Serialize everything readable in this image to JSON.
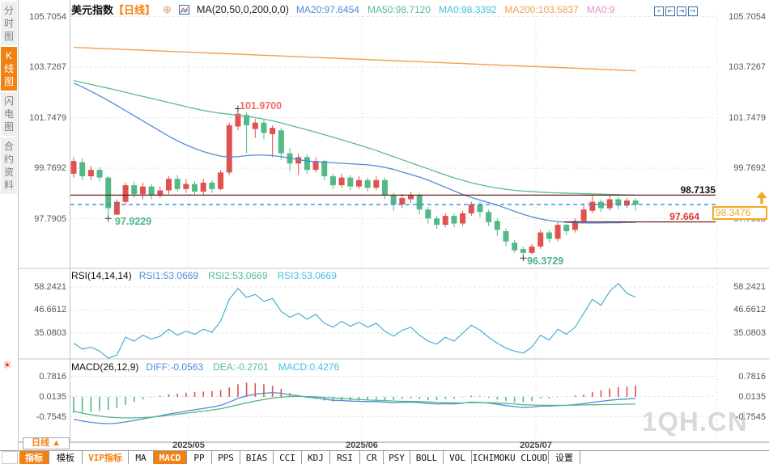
{
  "colors": {
    "accent_orange": "#f28114",
    "box_orange": "#f5a623",
    "candle_up": "#e0524d",
    "candle_down": "#53b987",
    "ma20_line": "#4f8bd8",
    "ma50_line": "#55bd91",
    "ma200_line": "#f0a050",
    "level_line_dark_red": "#6b1d1d",
    "dashed_price_blue": "#2f8be8",
    "rsi_line": "#49aed6",
    "diff_line": "#4f8bd8",
    "dea_line": "#53b987",
    "peak_label_red": "#ef6c6c",
    "low_label_green": "#4db389",
    "support_label_red": "#e03131"
  },
  "sidebar": {
    "tabs": [
      {
        "label": "分时图",
        "active": false
      },
      {
        "label": "K线图",
        "active": true
      },
      {
        "label": "闪电图",
        "active": false
      },
      {
        "label": "合约资料",
        "active": false
      }
    ]
  },
  "header": {
    "symbol": "美元指数",
    "period": "【日线】",
    "icons": {
      "add_indicator": "circle-plus",
      "chart_type": "line-chart-box"
    },
    "ma_formula": "MA(20,50,0,200,0,0)",
    "ma_values": [
      {
        "text": "MA20:97.6454",
        "color": "#4f8bd8"
      },
      {
        "text": "MA50:98.7120",
        "color": "#55bd91"
      },
      {
        "text": "MA0:98.3392",
        "color": "#45c0e0"
      },
      {
        "text": "MA200:103.5837",
        "color": "#f0a050"
      },
      {
        "text": "MA0:9",
        "color": "#ea8fc8"
      }
    ],
    "window_icons": [
      "pan",
      "shift-left",
      "shift-right",
      "restore"
    ]
  },
  "main_axis": {
    "labels": [
      "105.7054",
      "103.7267",
      "101.7479",
      "99.7692",
      "97.7905"
    ],
    "prices": [
      105.7054,
      103.7267,
      101.7479,
      99.7692,
      97.7905
    ]
  },
  "annotations": {
    "peak": "101.9700",
    "low_may": "97.9229",
    "low_july": "96.3729",
    "resistance": "98.7135",
    "support": "97.664",
    "last_price": "98.3476"
  },
  "rsi": {
    "title": "RSI(14,14,14)",
    "readouts": [
      {
        "text": "RSI1:53.0669",
        "color": "#4f8bd8"
      },
      {
        "text": "RSI2:53.0669",
        "color": "#55bd91"
      },
      {
        "text": "RSI3:53.0669",
        "color": "#45c0e0"
      }
    ],
    "axis_labels": [
      "58.2421",
      "46.6612",
      "35.0803"
    ],
    "axis_values": [
      58.2421,
      46.6612,
      35.0803
    ]
  },
  "macd": {
    "title": "MACD(26,12,9)",
    "readouts": [
      {
        "text": "DIFF:-0.0563",
        "color": "#4f8bd8"
      },
      {
        "text": "DEA:-0.2701",
        "color": "#55bd91"
      },
      {
        "text": "MACD:0.4276",
        "color": "#45c0e0"
      }
    ],
    "axis_labels": [
      "0.7816",
      "0.0135",
      "-0.7545"
    ],
    "axis_values": [
      0.7816,
      0.0135,
      -0.7545
    ]
  },
  "xaxis": {
    "period_selector": "日线",
    "arrow": "▲",
    "dates": [
      "2025/05",
      "2025/06",
      "2025/07"
    ]
  },
  "toolbar": {
    "items": [
      {
        "label": "指标",
        "state": "active"
      },
      {
        "label": "模板",
        "state": "normal"
      },
      {
        "label": "VIP指标",
        "state": "vip"
      },
      {
        "label": "MA",
        "state": "normal"
      },
      {
        "label": "MACD",
        "state": "active"
      },
      {
        "label": "PP",
        "state": "normal"
      },
      {
        "label": "PPS",
        "state": "normal"
      },
      {
        "label": "BIAS",
        "state": "normal"
      },
      {
        "label": "CCI",
        "state": "normal"
      },
      {
        "label": "KDJ",
        "state": "normal"
      },
      {
        "label": "RSI",
        "state": "normal"
      },
      {
        "label": "CR",
        "state": "normal"
      },
      {
        "label": "PSY",
        "state": "normal"
      },
      {
        "label": "BOLL",
        "state": "normal"
      },
      {
        "label": "VOL",
        "state": "normal"
      },
      {
        "label": "ICHIMOKU CLOUD",
        "state": "normal"
      },
      {
        "label": "设置",
        "state": "normal"
      }
    ]
  },
  "watermark": "1QH.CN",
  "chart_data": {
    "type": "candlestick",
    "symbol": "美元指数",
    "interval": "日线",
    "y_axis": [
      105.7054,
      103.7267,
      101.7479,
      99.7692,
      97.7905
    ],
    "x_dates": [
      "2025/05",
      "2025/06",
      "2025/07"
    ],
    "levels": {
      "resistance": 98.7135,
      "support": 97.664,
      "last": 98.3476
    },
    "marked_points": {
      "peak": {
        "index": 19,
        "price": 101.97
      },
      "low_may": {
        "index": 4,
        "price": 97.9229
      },
      "low_july": {
        "index": 52,
        "price": 96.3729
      }
    },
    "candles": [
      [
        99.55,
        100.05,
        100.2,
        99.4
      ],
      [
        100.0,
        99.45,
        100.15,
        99.3
      ],
      [
        99.45,
        99.7,
        99.85,
        99.3
      ],
      [
        99.7,
        99.4,
        99.8,
        99.25
      ],
      [
        99.4,
        98.2,
        99.45,
        97.9229
      ],
      [
        97.95,
        98.45,
        98.55,
        97.93
      ],
      [
        98.45,
        99.1,
        99.2,
        98.35
      ],
      [
        99.1,
        98.75,
        99.25,
        98.6
      ],
      [
        98.75,
        99.05,
        99.2,
        98.55
      ],
      [
        99.05,
        98.7,
        99.15,
        98.55
      ],
      [
        98.7,
        98.9,
        99.05,
        98.6
      ],
      [
        98.9,
        99.35,
        99.45,
        98.75
      ],
      [
        99.35,
        98.95,
        99.5,
        98.85
      ],
      [
        98.95,
        99.15,
        99.35,
        98.8
      ],
      [
        99.15,
        98.85,
        99.25,
        98.7
      ],
      [
        98.85,
        99.2,
        99.35,
        98.7
      ],
      [
        99.2,
        98.95,
        99.3,
        98.8
      ],
      [
        98.95,
        99.6,
        99.7,
        98.9
      ],
      [
        99.6,
        101.45,
        101.55,
        99.5
      ],
      [
        101.4,
        101.9,
        101.97,
        101.25
      ],
      [
        101.85,
        101.45,
        101.95,
        100.35
      ],
      [
        101.3,
        101.55,
        101.7,
        100.95
      ],
      [
        101.55,
        101.15,
        101.65,
        100.9
      ],
      [
        101.1,
        101.35,
        101.45,
        100.2
      ],
      [
        101.25,
        100.35,
        101.35,
        100.1
      ],
      [
        100.35,
        99.95,
        100.55,
        99.65
      ],
      [
        99.95,
        100.2,
        100.35,
        99.5
      ],
      [
        100.2,
        99.7,
        100.3,
        99.55
      ],
      [
        99.7,
        100.05,
        100.2,
        99.6
      ],
      [
        100.05,
        99.45,
        100.1,
        99.3
      ],
      [
        99.45,
        99.1,
        99.55,
        98.95
      ],
      [
        99.1,
        99.4,
        99.55,
        99.0
      ],
      [
        99.4,
        99.05,
        99.5,
        98.9
      ],
      [
        99.05,
        99.3,
        99.45,
        98.95
      ],
      [
        99.3,
        99.0,
        99.4,
        98.85
      ],
      [
        99.0,
        99.3,
        99.45,
        98.9
      ],
      [
        99.3,
        98.7,
        99.4,
        98.55
      ],
      [
        98.7,
        98.35,
        98.8,
        98.1
      ],
      [
        98.35,
        98.6,
        98.75,
        98.2
      ],
      [
        98.55,
        98.7,
        98.85,
        98.4
      ],
      [
        98.7,
        98.15,
        98.8,
        97.95
      ],
      [
        98.15,
        97.8,
        98.25,
        97.6
      ],
      [
        97.8,
        97.55,
        97.9,
        97.4
      ],
      [
        97.55,
        97.9,
        98.0,
        97.45
      ],
      [
        97.9,
        97.6,
        98.0,
        97.45
      ],
      [
        97.6,
        98.0,
        98.1,
        97.5
      ],
      [
        98.0,
        98.35,
        98.45,
        97.9
      ],
      [
        98.35,
        98.05,
        98.45,
        97.85
      ],
      [
        98.05,
        97.65,
        98.15,
        97.5
      ],
      [
        97.7,
        97.35,
        97.8,
        97.1
      ],
      [
        97.3,
        96.9,
        97.4,
        96.7
      ],
      [
        96.85,
        96.55,
        96.95,
        96.45
      ],
      [
        96.6,
        96.45,
        96.7,
        96.3729
      ],
      [
        96.45,
        96.7,
        96.8,
        96.4
      ],
      [
        96.7,
        97.25,
        97.35,
        96.6
      ],
      [
        97.25,
        97.0,
        97.35,
        96.85
      ],
      [
        97.0,
        97.55,
        97.65,
        96.9
      ],
      [
        97.55,
        97.3,
        97.6,
        97.15
      ],
      [
        97.35,
        97.7,
        97.8,
        97.25
      ],
      [
        97.7,
        98.15,
        98.4,
        97.6
      ],
      [
        98.1,
        98.45,
        98.72,
        98.0
      ],
      [
        98.45,
        98.2,
        98.55,
        98.05
      ],
      [
        98.2,
        98.55,
        98.7,
        98.1
      ],
      [
        98.55,
        98.3,
        98.65,
        98.15
      ],
      [
        98.3,
        98.5,
        98.6,
        98.2
      ],
      [
        98.5,
        98.3476,
        98.58,
        98.1
      ]
    ],
    "ma20": [
      103.1,
      102.95,
      102.78,
      102.6,
      102.42,
      102.22,
      102.02,
      101.82,
      101.62,
      101.42,
      101.22,
      101.02,
      100.84,
      100.68,
      100.54,
      100.42,
      100.32,
      100.24,
      100.2,
      100.22,
      100.26,
      100.28,
      100.28,
      100.26,
      100.22,
      100.16,
      100.1,
      100.05,
      100.02,
      100.0,
      99.98,
      99.96,
      99.94,
      99.92,
      99.9,
      99.86,
      99.8,
      99.72,
      99.62,
      99.52,
      99.42,
      99.3,
      99.16,
      99.02,
      98.88,
      98.74,
      98.62,
      98.52,
      98.42,
      98.32,
      98.2,
      98.08,
      97.96,
      97.86,
      97.78,
      97.72,
      97.68,
      97.65,
      97.63,
      97.62,
      97.62,
      97.62,
      97.63,
      97.63,
      97.64,
      97.6454
    ],
    "ma50": [
      103.2,
      103.12,
      103.05,
      102.97,
      102.9,
      102.82,
      102.74,
      102.66,
      102.58,
      102.5,
      102.42,
      102.34,
      102.26,
      102.18,
      102.1,
      102.03,
      101.97,
      101.92,
      101.88,
      101.84,
      101.8,
      101.75,
      101.69,
      101.62,
      101.54,
      101.45,
      101.36,
      101.27,
      101.18,
      101.08,
      100.98,
      100.88,
      100.78,
      100.68,
      100.57,
      100.46,
      100.34,
      100.22,
      100.1,
      99.98,
      99.86,
      99.74,
      99.62,
      99.5,
      99.39,
      99.29,
      99.2,
      99.12,
      99.05,
      98.99,
      98.94,
      98.9,
      98.87,
      98.85,
      98.83,
      98.81,
      98.8,
      98.79,
      98.78,
      98.77,
      98.76,
      98.75,
      98.74,
      98.73,
      98.72,
      98.712
    ],
    "ma200": {
      "start": 104.5,
      "end": 103.5837
    },
    "rsi_series": [
      30,
      27,
      28,
      26,
      21.5,
      24,
      33,
      31,
      34,
      32,
      33.5,
      37,
      34,
      36,
      34.5,
      37,
      35.5,
      41,
      52,
      57.5,
      53,
      54.5,
      51,
      52.5,
      46,
      43,
      45,
      42,
      44.5,
      40,
      38,
      41,
      38.5,
      40.5,
      38,
      40,
      36,
      33.5,
      36.5,
      38,
      34,
      31,
      29.5,
      33,
      31,
      35,
      39,
      36.5,
      33,
      30,
      27.5,
      26,
      25,
      28,
      34,
      31.5,
      37,
      34.5,
      38,
      45,
      52,
      49,
      56,
      60,
      55,
      53.0669
    ],
    "macd_diff": [
      -0.85,
      -0.92,
      -0.97,
      -1.0,
      -1.02,
      -1.0,
      -0.95,
      -0.9,
      -0.84,
      -0.78,
      -0.72,
      -0.65,
      -0.6,
      -0.54,
      -0.49,
      -0.44,
      -0.39,
      -0.32,
      -0.2,
      -0.06,
      0.04,
      0.1,
      0.14,
      0.16,
      0.14,
      0.08,
      0.04,
      -0.01,
      -0.04,
      -0.09,
      -0.13,
      -0.14,
      -0.16,
      -0.17,
      -0.18,
      -0.18,
      -0.2,
      -0.22,
      -0.21,
      -0.2,
      -0.22,
      -0.25,
      -0.27,
      -0.26,
      -0.27,
      -0.24,
      -0.2,
      -0.21,
      -0.24,
      -0.28,
      -0.33,
      -0.37,
      -0.4,
      -0.39,
      -0.35,
      -0.35,
      -0.33,
      -0.325,
      -0.29,
      -0.26,
      -0.21,
      -0.17,
      -0.13,
      -0.1,
      -0.08,
      -0.0563
    ],
    "macd_dea": [
      -0.55,
      -0.62,
      -0.68,
      -0.73,
      -0.77,
      -0.79,
      -0.8,
      -0.8,
      -0.79,
      -0.77,
      -0.74,
      -0.7,
      -0.66,
      -0.62,
      -0.58,
      -0.54,
      -0.5,
      -0.45,
      -0.38,
      -0.3,
      -0.23,
      -0.16,
      -0.1,
      -0.05,
      -0.01,
      0.01,
      0.02,
      0.01,
      0.0,
      -0.02,
      -0.04,
      -0.06,
      -0.08,
      -0.1,
      -0.12,
      -0.13,
      -0.14,
      -0.16,
      -0.17,
      -0.17,
      -0.18,
      -0.19,
      -0.21,
      -0.22,
      -0.23,
      -0.23,
      -0.22,
      -0.22,
      -0.22,
      -0.23,
      -0.25,
      -0.27,
      -0.3,
      -0.31,
      -0.32,
      -0.32,
      -0.32,
      -0.32,
      -0.315,
      -0.305,
      -0.3,
      -0.295,
      -0.29,
      -0.285,
      -0.278,
      -0.2701
    ],
    "macd_hist": [
      -0.6,
      -0.6,
      -0.58,
      -0.54,
      -0.5,
      -0.42,
      -0.3,
      -0.2,
      -0.1,
      -0.02,
      0.04,
      0.1,
      0.12,
      0.16,
      0.18,
      0.2,
      0.22,
      0.26,
      0.36,
      0.48,
      0.54,
      0.52,
      0.48,
      0.42,
      0.3,
      0.14,
      0.04,
      -0.04,
      -0.08,
      -0.14,
      -0.18,
      -0.16,
      -0.16,
      -0.14,
      -0.12,
      -0.1,
      -0.12,
      -0.12,
      -0.08,
      -0.06,
      -0.08,
      -0.12,
      -0.12,
      -0.08,
      -0.08,
      -0.02,
      0.04,
      0.02,
      -0.04,
      -0.1,
      -0.16,
      -0.2,
      -0.2,
      -0.16,
      -0.06,
      -0.06,
      -0.02,
      -0.01,
      0.05,
      0.09,
      0.18,
      0.25,
      0.32,
      0.37,
      0.396,
      0.4276
    ]
  }
}
